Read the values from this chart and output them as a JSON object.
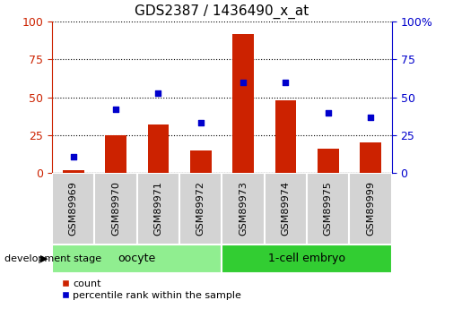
{
  "title": "GDS2387 / 1436490_x_at",
  "samples": [
    "GSM89969",
    "GSM89970",
    "GSM89971",
    "GSM89972",
    "GSM89973",
    "GSM89974",
    "GSM89975",
    "GSM89999"
  ],
  "counts": [
    2,
    25,
    32,
    15,
    92,
    48,
    16,
    20
  ],
  "percentiles": [
    11,
    42,
    53,
    33,
    60,
    60,
    40,
    37
  ],
  "oocyte_indices": [
    0,
    1,
    2,
    3
  ],
  "embryo_indices": [
    4,
    5,
    6,
    7
  ],
  "oocyte_label": "oocyte",
  "embryo_label": "1-cell embryo",
  "oocyte_color": "#90EE90",
  "embryo_color": "#32CD32",
  "bar_color": "#CC2200",
  "dot_color": "#0000CC",
  "ylim": [
    0,
    100
  ],
  "yticks": [
    0,
    25,
    50,
    75,
    100
  ],
  "grid_style": ":",
  "bg_color": "#ffffff",
  "plot_bg": "#ffffff",
  "sample_cell_color": "#D3D3D3",
  "tick_color_left": "#CC2200",
  "tick_color_right": "#0000CC",
  "stage_label": "development stage",
  "legend_count_label": "count",
  "legend_pct_label": "percentile rank within the sample",
  "title_fontsize": 11,
  "tick_fontsize": 9,
  "sample_fontsize": 8,
  "group_fontsize": 9,
  "legend_fontsize": 8,
  "stage_fontsize": 8
}
